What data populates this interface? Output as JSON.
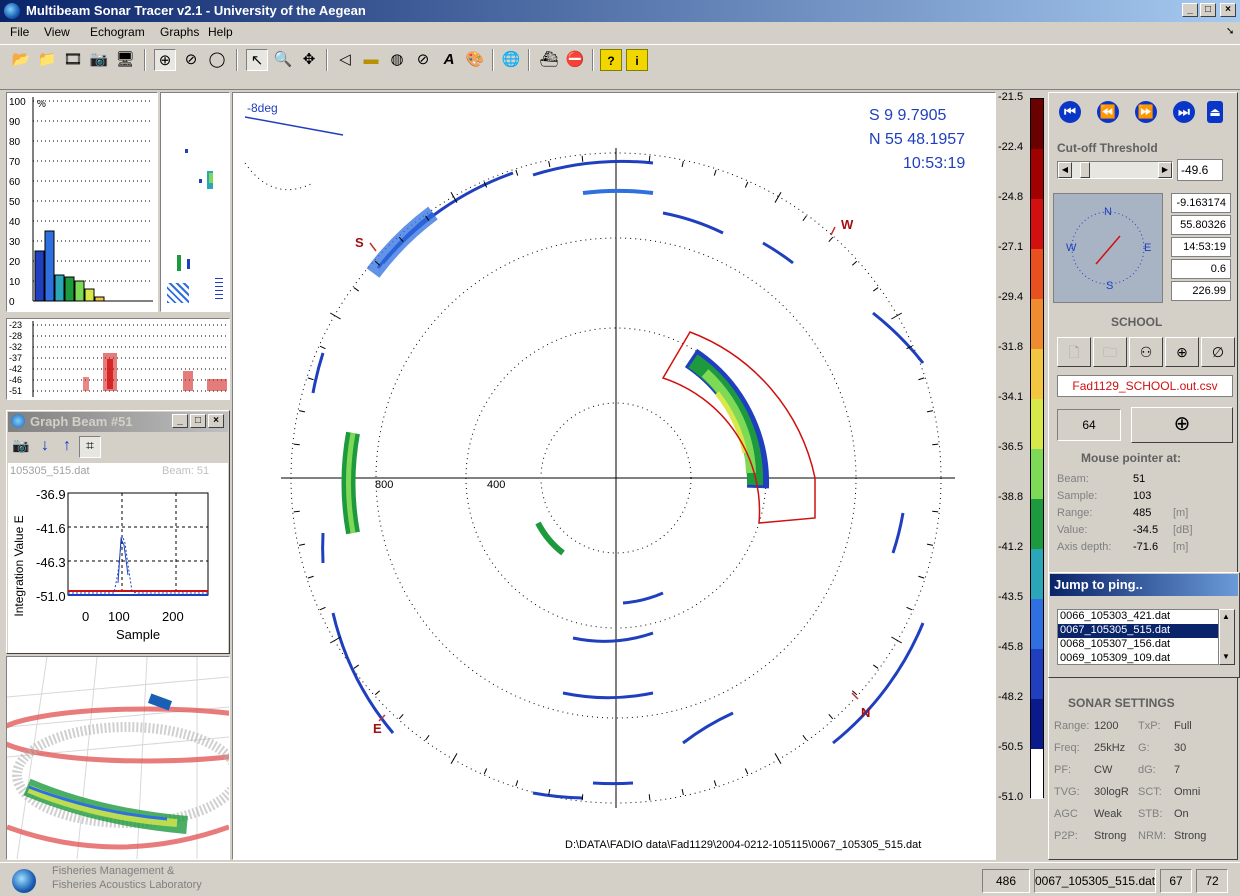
{
  "app": {
    "title": "Multibeam Sonar Tracer v2.1 - University of the Aegean"
  },
  "menu": [
    "File",
    "View",
    "Echogram",
    "Graphs",
    "Help"
  ],
  "histogram": {
    "y_ticks": [
      "100",
      "90",
      "80",
      "70",
      "60",
      "50",
      "40",
      "30",
      "20",
      "10",
      "0"
    ],
    "unit": "%",
    "bars": [
      {
        "value": 25,
        "color": "#1f3fbf"
      },
      {
        "value": 35,
        "color": "#2f6fe0"
      },
      {
        "value": 13,
        "color": "#2aa6b8"
      },
      {
        "value": 12,
        "color": "#1e9a3e"
      },
      {
        "value": 10,
        "color": "#7ed957"
      },
      {
        "value": 6,
        "color": "#d8e84a"
      },
      {
        "value": 2,
        "color": "#f2c640"
      }
    ]
  },
  "echogram": {
    "y_ticks": [
      "-23",
      "-28",
      "-32",
      "-37",
      "-42",
      "-46",
      "-51"
    ]
  },
  "graph_beam": {
    "title": "Graph Beam #51",
    "file": "105305_515.dat",
    "beam_label": "Beam: 51",
    "y_label": "Integration Value E",
    "x_label": "Sample",
    "y_ticks": [
      "-36.9",
      "-41.6",
      "-46.3",
      "-51.0"
    ],
    "x_ticks": [
      "0",
      "100",
      "200"
    ]
  },
  "sonar_view": {
    "angle_label": "-8deg",
    "lat": "S  9  9.7905",
    "lon": "N  55  48.1957",
    "time": "10:53:19",
    "range_labels": [
      "800",
      "400"
    ],
    "compass": [
      "S",
      "W",
      "N",
      "E"
    ],
    "filepath": "D:\\DATA\\FADIO data\\Fad1129\\2004-0212-105115\\0067_105305_515.dat"
  },
  "color_scale": {
    "labels": [
      "-21.5",
      "-22.4",
      "-24.8",
      "-27.1",
      "-29.4",
      "-31.8",
      "-34.1",
      "-36.5",
      "-38.8",
      "-41.2",
      "-43.5",
      "-45.8",
      "-48.2",
      "-50.5",
      "-51.0"
    ],
    "colors": [
      "#6b0000",
      "#a00000",
      "#d21010",
      "#e85020",
      "#f08c30",
      "#f2c640",
      "#d8e84a",
      "#7ed957",
      "#1e9a3e",
      "#2aa6b8",
      "#2f6fe0",
      "#1f3fbf",
      "#0a1a8a",
      "#ffffff"
    ]
  },
  "right_panel": {
    "cutoff_label": "Cut-off Threshold",
    "cutoff_value": "-49.6",
    "compass_letters": [
      "N",
      "W",
      "E",
      "S"
    ],
    "readouts": [
      "-9.163174",
      "55.80326",
      "14:53:19",
      "0.6",
      "226.99"
    ],
    "school_header": "SCHOOL",
    "school_file": "Fad1129_SCHOOL.out.csv",
    "school_count": "64",
    "mouse_header": "Mouse pointer at:",
    "mouse": [
      {
        "k": "Beam:",
        "v": "51",
        "u": ""
      },
      {
        "k": "Sample:",
        "v": "103",
        "u": ""
      },
      {
        "k": "Range:",
        "v": "485",
        "u": "[m]"
      },
      {
        "k": "Value:",
        "v": "-34.5",
        "u": "[dB]"
      },
      {
        "k": "Axis depth:",
        "v": "-71.6",
        "u": "[m]"
      }
    ],
    "jump_title": "Jump to ping..",
    "jump_items": [
      "0066_105303_421.dat",
      "0067_105305_515.dat",
      "0068_105307_156.dat",
      "0069_105309_109.dat"
    ],
    "jump_selected": 1,
    "sonar_header": "SONAR SETTINGS",
    "sonar_settings": [
      {
        "k": "Range:",
        "v": "1200",
        "k2": "TxP:",
        "v2": "Full"
      },
      {
        "k": "Freq:",
        "v": "25kHz",
        "k2": "G:",
        "v2": "30"
      },
      {
        "k": "PF:",
        "v": "CW",
        "k2": "dG:",
        "v2": "7"
      },
      {
        "k": "TVG:",
        "v": "30logR",
        "k2": "SCT:",
        "v2": "Omni"
      },
      {
        "k": "AGC",
        "v": "Weak",
        "k2": "STB:",
        "v2": "On"
      },
      {
        "k": "P2P:",
        "v": "Strong",
        "k2": "NRM:",
        "v2": "Strong"
      }
    ]
  },
  "statusbar": {
    "lab_line1": "Fisheries Management &",
    "lab_line2": "Fisheries Acoustics Laboratory",
    "ping": "486",
    "file": "0067_105305_515.dat",
    "v1": "67",
    "v2": "72"
  }
}
